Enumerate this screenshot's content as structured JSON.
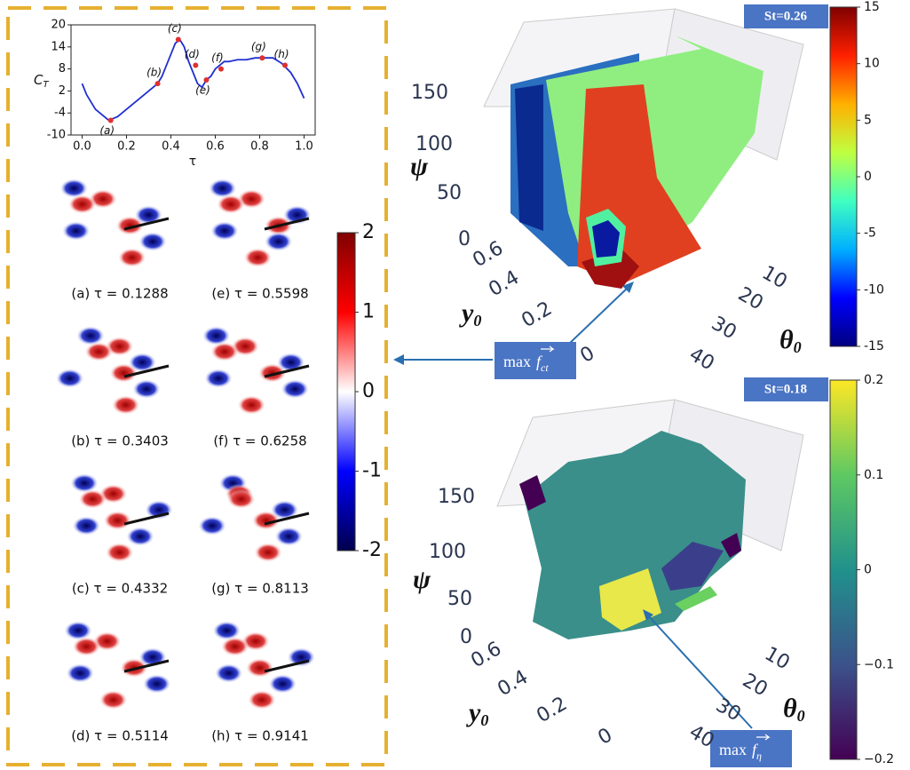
{
  "chart_data": [
    {
      "type": "line",
      "ylabel": "C",
      "ylabel_sub": "T",
      "xlabel": "τ",
      "x": [
        0,
        0.02,
        0.04,
        0.06,
        0.08,
        0.1,
        0.12,
        0.14,
        0.16,
        0.18,
        0.2,
        0.22,
        0.24,
        0.26,
        0.28,
        0.3,
        0.32,
        0.34,
        0.36,
        0.38,
        0.4,
        0.42,
        0.44,
        0.46,
        0.48,
        0.5,
        0.52,
        0.54,
        0.56,
        0.58,
        0.6,
        0.62,
        0.64,
        0.66,
        0.7,
        0.74,
        0.78,
        0.82,
        0.86,
        0.9,
        0.94,
        0.97,
        1.0
      ],
      "series": [
        {
          "color": "#1f2fd0",
          "values": [
            4,
            1,
            -1,
            -3,
            -4,
            -5,
            -6,
            -5.5,
            -5,
            -4,
            -3,
            -2,
            -1,
            0,
            1,
            2,
            3,
            4,
            6,
            9,
            12,
            15,
            16,
            14,
            10,
            7,
            4,
            3,
            5,
            6,
            8,
            9,
            10,
            10,
            10.5,
            10.5,
            11,
            11,
            11,
            9.5,
            7,
            4,
            0
          ]
        }
      ],
      "markers": {
        "color": "#e03030",
        "labels": [
          "(a)",
          "(b)",
          "(c)",
          "(d)",
          "(e)",
          "(f)",
          "(g)",
          "(h)"
        ],
        "x": [
          0.1288,
          0.3403,
          0.4332,
          0.5114,
          0.5598,
          0.6258,
          0.8113,
          0.9141
        ],
        "y": [
          -6,
          4,
          16,
          9,
          5,
          8,
          11,
          9
        ]
      },
      "xlim": [
        -0.05,
        1.05
      ],
      "ylim": [
        -10,
        20
      ],
      "xticks": [
        {
          "value": 0,
          "label": "0.0"
        },
        0.2,
        0.4,
        0.6,
        0.8,
        {
          "value": 1,
          "label": "1.0"
        }
      ],
      "yticks": [
        -10,
        -4,
        2,
        8,
        14,
        20
      ]
    },
    {
      "type": "colorbar",
      "ylim": [
        -2,
        2
      ],
      "yticks": [
        -2,
        -1,
        0,
        1,
        2
      ],
      "colors": [
        "#00004c",
        "#0000ff",
        "#ffffff",
        "#ff0000",
        "#800000"
      ]
    },
    {
      "type": "colorbar",
      "ylim": [
        -15,
        15
      ],
      "yticks": [
        -15,
        -10,
        -5,
        0,
        5,
        10,
        15
      ],
      "colors": [
        "#00007f",
        "#0000ff",
        "#00b0ff",
        "#40ffc0",
        "#c0ff40",
        "#ffb000",
        "#ff2000",
        "#7f0000"
      ]
    },
    {
      "type": "colorbar",
      "ylim": [
        -0.2,
        0.2
      ],
      "yticks": [
        {
          "value": -0.2,
          "label": "−0.2"
        },
        {
          "value": -0.1,
          "label": "−0.1"
        },
        0,
        0.1,
        0.2
      ],
      "colors": [
        "#440154",
        "#3b528b",
        "#21918c",
        "#5ec962",
        "#fde725"
      ]
    }
  ],
  "snapshots": [
    "(a) τ = 0.1288",
    "(e) τ = 0.5598",
    "(b) τ = 0.3403",
    "(f) τ = 0.6258",
    "(c) τ = 0.4332",
    "(g) τ = 0.8113",
    "(d) τ = 0.5114",
    "(h) τ = 0.9141"
  ],
  "plots3d": [
    {
      "tag": "St=0.26",
      "annot": {
        "prefix": "max",
        "vec": "f",
        "sub": "ct"
      },
      "psi_label": "ψ",
      "y_label": "y",
      "y_sub": "0",
      "theta_label": "θ",
      "theta_sub": "0",
      "psi_ticks": [
        0,
        50,
        100,
        150
      ],
      "y_ticks": [
        0,
        0.2,
        0.4,
        0.6
      ],
      "theta_ticks": [
        10,
        20,
        30,
        40
      ]
    },
    {
      "tag": "St=0.18",
      "annot": {
        "prefix": "max",
        "vec": "f",
        "sub": "η"
      },
      "psi_label": "ψ",
      "y_label": "y",
      "y_sub": "0",
      "theta_label": "θ",
      "theta_sub": "0",
      "psi_ticks": [
        0,
        50,
        100,
        150
      ],
      "y_ticks": [
        0,
        0.2,
        0.4,
        0.6
      ],
      "theta_ticks": [
        10,
        20,
        30,
        40
      ]
    }
  ]
}
